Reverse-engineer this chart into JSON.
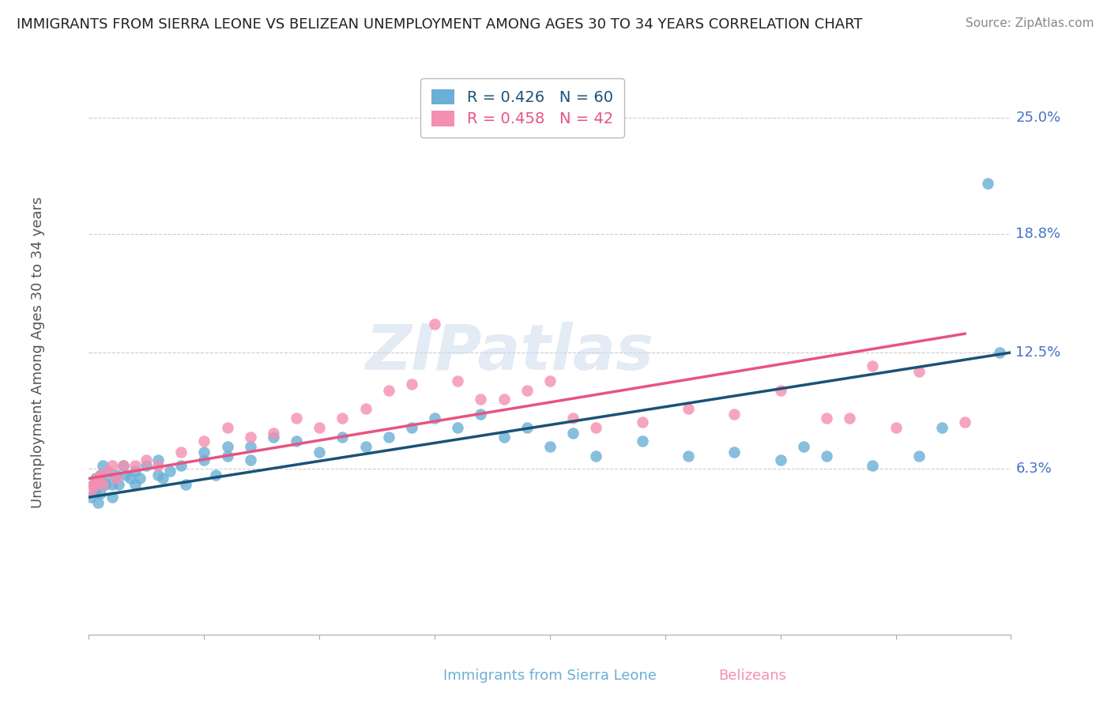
{
  "title": "IMMIGRANTS FROM SIERRA LEONE VS BELIZEAN UNEMPLOYMENT AMONG AGES 30 TO 34 YEARS CORRELATION CHART",
  "source": "Source: ZipAtlas.com",
  "ylabel": "Unemployment Among Ages 30 to 34 years",
  "ytick_labels": [
    "25.0%",
    "18.8%",
    "12.5%",
    "6.3%"
  ],
  "ytick_values": [
    0.25,
    0.188,
    0.125,
    0.063
  ],
  "xlim": [
    0.0,
    0.04
  ],
  "ylim": [
    -0.025,
    0.275
  ],
  "legend1_label": "R = 0.426   N = 60",
  "legend2_label": "R = 0.458   N = 42",
  "color_blue": "#6baed6",
  "color_pink": "#f48fb1",
  "line_blue": "#1a5276",
  "line_pink": "#e75480",
  "watermark": "ZIPatlas",
  "blue_scatter_x": [
    0.0001,
    0.0002,
    0.0003,
    0.0003,
    0.0004,
    0.0005,
    0.0005,
    0.0006,
    0.0007,
    0.0008,
    0.001,
    0.001,
    0.0012,
    0.0013,
    0.0015,
    0.0016,
    0.0018,
    0.002,
    0.002,
    0.0022,
    0.0025,
    0.003,
    0.003,
    0.0032,
    0.0035,
    0.004,
    0.0042,
    0.005,
    0.005,
    0.0055,
    0.006,
    0.006,
    0.007,
    0.007,
    0.008,
    0.009,
    0.01,
    0.011,
    0.012,
    0.013,
    0.014,
    0.015,
    0.016,
    0.017,
    0.018,
    0.019,
    0.02,
    0.021,
    0.022,
    0.024,
    0.026,
    0.028,
    0.03,
    0.031,
    0.032,
    0.034,
    0.036,
    0.037,
    0.039,
    0.0395
  ],
  "blue_scatter_y": [
    0.048,
    0.055,
    0.052,
    0.058,
    0.045,
    0.05,
    0.06,
    0.065,
    0.055,
    0.06,
    0.048,
    0.055,
    0.06,
    0.055,
    0.065,
    0.06,
    0.058,
    0.062,
    0.055,
    0.058,
    0.065,
    0.06,
    0.068,
    0.058,
    0.062,
    0.065,
    0.055,
    0.068,
    0.072,
    0.06,
    0.07,
    0.075,
    0.075,
    0.068,
    0.08,
    0.078,
    0.072,
    0.08,
    0.075,
    0.08,
    0.085,
    0.09,
    0.085,
    0.092,
    0.08,
    0.085,
    0.075,
    0.082,
    0.07,
    0.078,
    0.07,
    0.072,
    0.068,
    0.075,
    0.07,
    0.065,
    0.07,
    0.085,
    0.215,
    0.125
  ],
  "pink_scatter_x": [
    0.0001,
    0.0002,
    0.0003,
    0.0004,
    0.0005,
    0.0006,
    0.0008,
    0.001,
    0.0012,
    0.0015,
    0.002,
    0.0025,
    0.003,
    0.004,
    0.005,
    0.006,
    0.007,
    0.008,
    0.009,
    0.01,
    0.011,
    0.012,
    0.013,
    0.014,
    0.015,
    0.016,
    0.017,
    0.018,
    0.019,
    0.02,
    0.021,
    0.022,
    0.024,
    0.026,
    0.028,
    0.03,
    0.032,
    0.033,
    0.034,
    0.035,
    0.036,
    0.038
  ],
  "pink_scatter_y": [
    0.052,
    0.055,
    0.055,
    0.058,
    0.06,
    0.055,
    0.062,
    0.065,
    0.058,
    0.065,
    0.065,
    0.068,
    0.065,
    0.072,
    0.078,
    0.085,
    0.08,
    0.082,
    0.09,
    0.085,
    0.09,
    0.095,
    0.105,
    0.108,
    0.14,
    0.11,
    0.1,
    0.1,
    0.105,
    0.11,
    0.09,
    0.085,
    0.088,
    0.095,
    0.092,
    0.105,
    0.09,
    0.09,
    0.118,
    0.085,
    0.115,
    0.088
  ],
  "blue_line_x": [
    0.0,
    0.04
  ],
  "blue_line_y": [
    0.048,
    0.125
  ],
  "pink_line_x": [
    0.0,
    0.038
  ],
  "pink_line_y": [
    0.058,
    0.135
  ]
}
